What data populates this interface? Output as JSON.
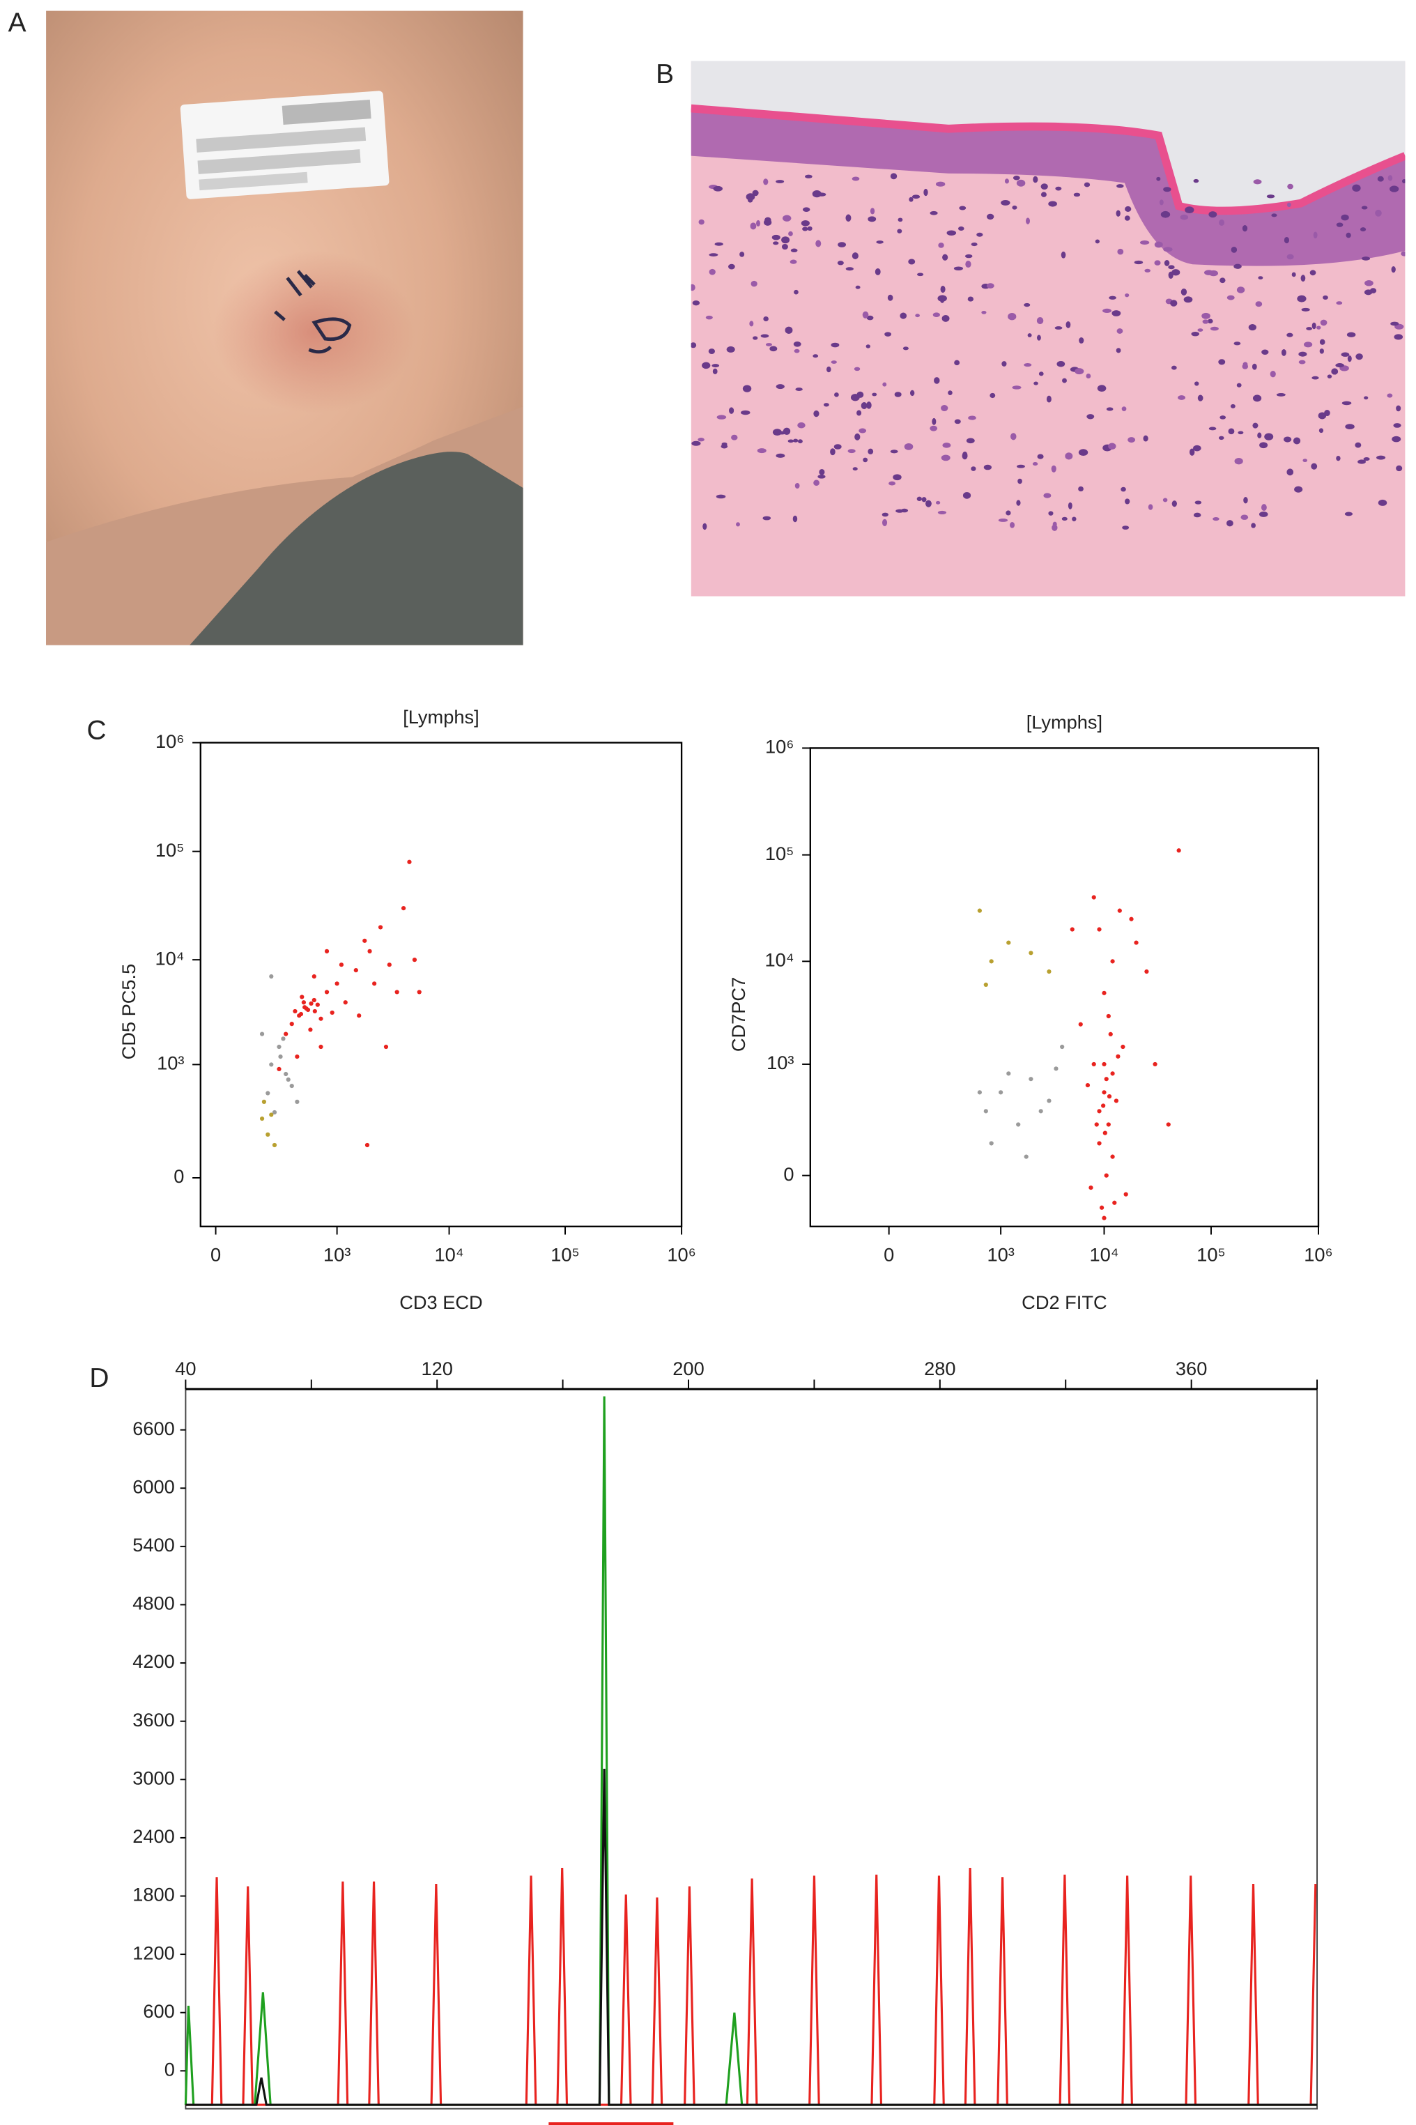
{
  "panel_labels": [
    "A",
    "B",
    "C",
    "D"
  ],
  "chart_data": [
    {
      "type": "scatter",
      "title": "[Lymphs]",
      "x_label": "CD3 ECD",
      "y_label": "CD5 PC5.5",
      "scale": "biexponential",
      "xlim": [
        -35,
        1000000
      ],
      "ylim": [
        -180,
        1000000
      ],
      "xticks": [
        0,
        {
          "value": 1000,
          "label": "10³"
        },
        {
          "value": 10000,
          "label": "10⁴"
        },
        {
          "value": 100000,
          "label": "10⁵"
        },
        {
          "value": 1000000,
          "label": "10⁶"
        }
      ],
      "yticks": [
        0,
        {
          "value": 1000,
          "label": "10³"
        },
        {
          "value": 10000,
          "label": "10⁴"
        },
        {
          "value": 100000,
          "label": "10⁵"
        },
        {
          "value": 1000000,
          "label": "10⁶"
        }
      ],
      "series": [
        {
          "color": "#e8231f",
          "x": [
            500,
            420,
            600,
            350,
            800,
            700,
            1000,
            1500,
            2000,
            3000,
            1200,
            900,
            450,
            550,
            650,
            380,
            300,
            1800,
            2500,
            4000,
            5000,
            2200,
            1600,
            700,
            400,
            250,
            3500,
            1100,
            800,
            600,
            2800,
            1900,
            5500,
            4500,
            480,
            520,
            560,
            440,
            610,
            470
          ],
          "y": [
            3500,
            3000,
            4200,
            2500,
            5000,
            2800,
            6000,
            8000,
            12000,
            9000,
            4000,
            3200,
            4500,
            2200,
            3800,
            3300,
            2000,
            15000,
            20000,
            30000,
            10000,
            6000,
            3000,
            1500,
            1200,
            900,
            5000,
            9000,
            12000,
            7000,
            1500,
            100,
            5000,
            80000,
            3600,
            3400,
            3900,
            3100,
            3300,
            4000
          ]
        },
        {
          "color": "#9a9a9a",
          "x": [
            200,
            250,
            300,
            180,
            220,
            350,
            280,
            200,
            150,
            400,
            260,
            320
          ],
          "y": [
            1000,
            1500,
            800,
            500,
            300,
            600,
            1800,
            7000,
            2000,
            400,
            1200,
            700
          ]
        },
        {
          "color": "#b8a030",
          "x": [
            150,
            180,
            220,
            160,
            200
          ],
          "y": [
            250,
            150,
            100,
            400,
            280
          ]
        }
      ]
    },
    {
      "type": "scatter",
      "title": "[Lymphs]",
      "x_label": "CD2 FITC",
      "y_label": "CD7PC7",
      "scale": "biexponential",
      "xlim": [
        -440,
        1000000
      ],
      "ylim": [
        -200,
        1000000
      ],
      "xticks": [
        0,
        {
          "value": 1000,
          "label": "10³"
        },
        {
          "value": 10000,
          "label": "10⁴"
        },
        {
          "value": 100000,
          "label": "10⁵"
        },
        {
          "value": 1000000,
          "label": "10⁶"
        }
      ],
      "yticks": [
        0,
        {
          "value": 1000,
          "label": "10³"
        },
        {
          "value": 10000,
          "label": "10⁴"
        },
        {
          "value": 100000,
          "label": "10⁵"
        },
        {
          "value": 1000000,
          "label": "10⁶"
        }
      ],
      "series": [
        {
          "color": "#e8231f",
          "x": [
            10000,
            9000,
            12000,
            11000,
            8000,
            13000,
            10500,
            9500,
            11500,
            7000,
            15000,
            10000,
            12000,
            9000,
            14000,
            20000,
            25000,
            8000,
            11000,
            10000,
            12500,
            9000,
            6000,
            30000,
            50000,
            16000,
            10500,
            9800,
            11200,
            10200,
            8500,
            13500,
            7500,
            10000,
            12000,
            40000,
            5000,
            18000
          ],
          "y": [
            500,
            300,
            800,
            200,
            1000,
            400,
            0,
            -100,
            2000,
            600,
            1500,
            5000,
            10000,
            20000,
            30000,
            15000,
            8000,
            40000,
            3000,
            -150,
            -80,
            100,
            2500,
            1000,
            110000,
            -50,
            700,
            350,
            450,
            150,
            200,
            1200,
            -30,
            1000,
            50,
            200,
            20000,
            25000
          ]
        },
        {
          "color": "#9a9a9a",
          "x": [
            700,
            1000,
            1500,
            2000,
            3000,
            800,
            1200,
            2500,
            4000,
            600,
            1800,
            3500
          ],
          "y": [
            300,
            500,
            200,
            700,
            400,
            100,
            800,
            300,
            1500,
            500,
            50,
            900
          ]
        },
        {
          "color": "#b8a030",
          "x": [
            600,
            800,
            1200,
            700,
            2000,
            3000
          ],
          "y": [
            30000,
            10000,
            15000,
            6000,
            12000,
            8000
          ]
        }
      ]
    },
    {
      "type": "line",
      "xaxis_position": "top",
      "xlim": [
        40,
        400
      ],
      "ylim": [
        -390,
        7020
      ],
      "xticks": [
        40,
        120,
        200,
        280,
        360
      ],
      "xminor_ticks": [
        80,
        160,
        240,
        320,
        400
      ],
      "yticks": [
        0,
        600,
        1200,
        1800,
        2400,
        3000,
        3600,
        4200,
        4800,
        5400,
        6000,
        6600
      ],
      "series": [
        {
          "color": "#e8231f",
          "x": [
            40,
            48.4,
            49.9,
            51.4,
            58.3,
            59.8,
            61.3,
            88.5,
            90,
            91.5,
            98.4,
            99.9,
            101.4,
            118.2,
            119.7,
            121.2,
            148.4,
            149.9,
            151.4,
            158.3,
            159.8,
            161.3,
            178.6,
            180.1,
            181.6,
            188.5,
            190,
            191.5,
            198.8,
            200.3,
            201.8,
            218.7,
            220.2,
            221.7,
            238.5,
            240,
            241.5,
            258.3,
            259.8,
            261.3,
            278.2,
            279.7,
            281.2,
            288.1,
            289.6,
            291.1,
            298.4,
            299.9,
            301.4,
            318.2,
            319.7,
            321.2,
            338.1,
            339.6,
            341.1,
            358.3,
            359.8,
            361.3,
            378.2,
            379.7,
            381.2,
            398,
            399.5
          ],
          "values": [
            -350,
            -350,
            1995,
            -350,
            -350,
            1900,
            -350,
            -350,
            1950,
            -350,
            -350,
            1950,
            -350,
            -350,
            1925,
            -350,
            -350,
            2010,
            -350,
            -350,
            2090,
            -350,
            -350,
            1815,
            -350,
            -350,
            1785,
            -350,
            -350,
            1900,
            -350,
            -350,
            1980,
            -350,
            -350,
            2010,
            -350,
            -350,
            2020,
            -350,
            -350,
            2010,
            -350,
            -350,
            2090,
            -350,
            -350,
            1995,
            -350,
            -350,
            2020,
            -350,
            -350,
            2010,
            -350,
            -350,
            2010,
            -350,
            -350,
            1925,
            -350,
            -350,
            1925
          ]
        },
        {
          "color": "#1fa01f",
          "x": [
            40,
            40.9,
            42.5,
            62,
            64.6,
            67,
            171.7,
            173.2,
            174.7,
            212,
            214.6,
            217,
            400
          ],
          "values": [
            -350,
            670,
            -350,
            -350,
            810,
            -350,
            -350,
            6945,
            -350,
            -350,
            600,
            -350,
            -350
          ]
        },
        {
          "color": "#111111",
          "x": [
            40,
            62.5,
            64.1,
            65.7,
            171.7,
            173.2,
            174.7,
            400
          ],
          "values": [
            -350,
            -350,
            -70,
            -350,
            -350,
            3110,
            -350,
            -350
          ]
        }
      ],
      "annotation": "174.64",
      "annotation_range": [
        155.5,
        195.2
      ],
      "annotation_color": "#e8231f"
    }
  ]
}
